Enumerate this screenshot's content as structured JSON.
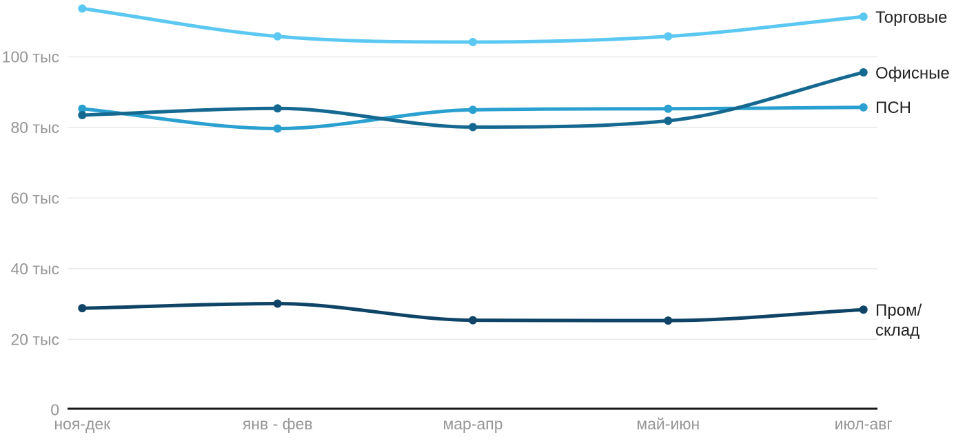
{
  "chart_data": {
    "type": "line",
    "title": "",
    "xlabel": "",
    "ylabel": "",
    "unit": "тыс",
    "categories": [
      "ноя-дек",
      "янв - фев",
      "мар-апр",
      "май-июн",
      "июл-авг"
    ],
    "series": [
      {
        "name": "Торговые",
        "legend_lines": [
          "Торговые"
        ],
        "color": "#5bc8f2",
        "values": [
          113.7,
          105.8,
          104.2,
          105.8,
          111.4
        ]
      },
      {
        "name": "ПСН",
        "legend_lines": [
          "ПСН"
        ],
        "color": "#2aa0d0",
        "values": [
          85.3,
          79.7,
          85,
          85.3,
          85.7
        ]
      },
      {
        "name": "Офисные",
        "legend_lines": [
          "Офисные"
        ],
        "color": "#156990",
        "values": [
          83.5,
          85.4,
          80.1,
          81.9,
          95.6
        ]
      },
      {
        "name": "Пром/склад",
        "legend_lines": [
          "Пром/",
          "склад"
        ],
        "color": "#0f4467",
        "values": [
          28.8,
          30.1,
          25.4,
          25.3,
          28.4
        ]
      }
    ],
    "y_axis": {
      "range": [
        0,
        116
      ],
      "ticks": [
        {
          "value": 0,
          "label": "0"
        },
        {
          "value": 20,
          "label": "20 тыс"
        },
        {
          "value": 40,
          "label": "40 тыс"
        },
        {
          "value": 60,
          "label": "60 тыс"
        },
        {
          "value": 80,
          "label": "80 тыс"
        },
        {
          "value": 100,
          "label": "100 тыс"
        }
      ]
    },
    "layout": {
      "grid": "on",
      "legend_position": "right",
      "markers": "points-on-lines",
      "smooth": "monotone"
    }
  },
  "colors": {
    "background": "#ffffff",
    "grid": "#e9e9e9",
    "axis": "#161616",
    "tick_label": "#969696",
    "legend_text": "#242424"
  }
}
